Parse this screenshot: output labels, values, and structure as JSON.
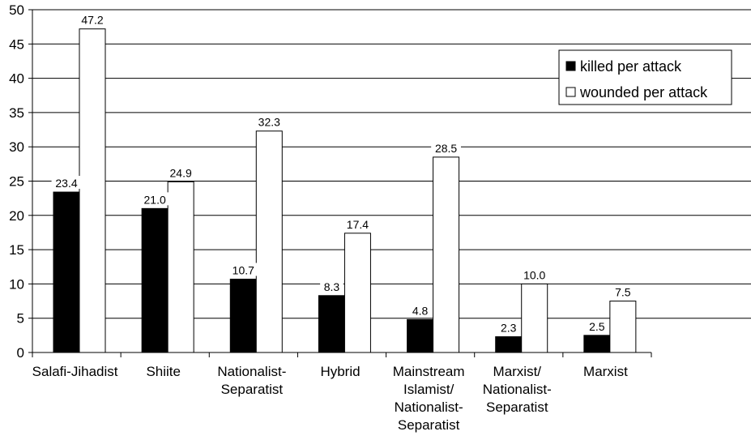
{
  "chart_data": {
    "type": "bar",
    "categories": [
      [
        "Salafi-Jihadist"
      ],
      [
        "Shiite"
      ],
      [
        "Nationalist-",
        "Separatist"
      ],
      [
        "Hybrid"
      ],
      [
        "Mainstream",
        "Islamist/",
        "Nationalist-",
        "Separatist"
      ],
      [
        "Marxist/",
        "Nationalist-",
        "Separatist"
      ],
      [
        "Marxist"
      ]
    ],
    "series": [
      {
        "name": "killed per attack",
        "values": [
          23.4,
          21.0,
          10.7,
          8.3,
          4.8,
          2.3,
          2.5
        ],
        "labels": [
          "23.4",
          "21.0",
          "10.7",
          "8.3",
          "4.8",
          "2.3",
          "2.5"
        ],
        "color": "#000000"
      },
      {
        "name": "wounded per attack",
        "values": [
          47.2,
          24.9,
          32.3,
          17.4,
          28.5,
          10.0,
          7.5
        ],
        "labels": [
          "47.2",
          "24.9",
          "32.3",
          "17.4",
          "28.5",
          "10.0",
          "7.5"
        ],
        "color": "#ffffff"
      }
    ],
    "ylim": [
      0,
      50
    ],
    "yticks": [
      "0",
      "5",
      "10",
      "15",
      "20",
      "25",
      "30",
      "35",
      "40",
      "45",
      "50"
    ],
    "grid": true,
    "legend_position": "top-right"
  }
}
